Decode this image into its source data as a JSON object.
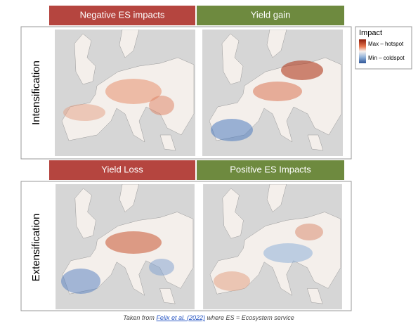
{
  "headers": {
    "top": [
      "Negative ES impacts",
      "Yield gain"
    ],
    "bottom": [
      "Yield Loss",
      "Positive ES Impacts"
    ]
  },
  "rows": [
    "Intensification",
    "Extensification"
  ],
  "legend": {
    "title": "Impact",
    "items": [
      "Max – hotspot",
      "Min – coldspot"
    ]
  },
  "caption": {
    "before": "Taken from ",
    "link": "Felix et al. (2022)",
    "after": " where ES = Ecosystem service"
  }
}
